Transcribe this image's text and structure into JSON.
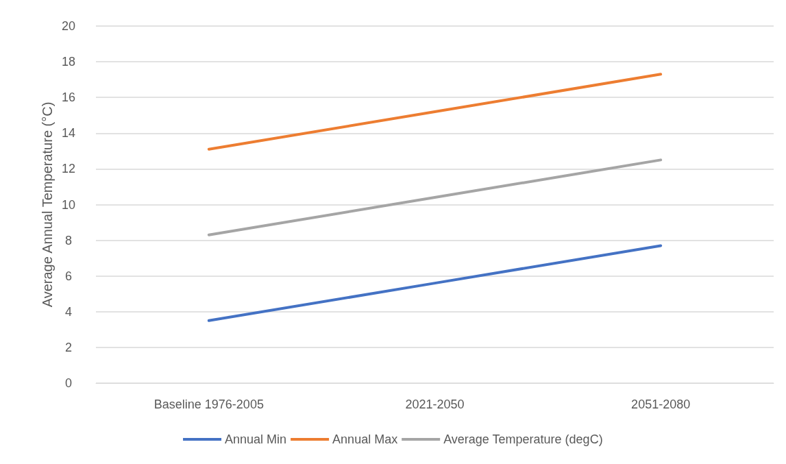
{
  "chart_data": {
    "type": "line",
    "ylabel": "Average Annual Temperature (°C)",
    "categories": [
      "Baseline 1976-2005",
      "2021-2050",
      "2051-2080"
    ],
    "series": [
      {
        "name": "Annual Min",
        "color": "#4472c4",
        "values": [
          3.5,
          5.6,
          7.7
        ]
      },
      {
        "name": "Annual Max",
        "color": "#ed7d31",
        "values": [
          13.1,
          15.2,
          17.3
        ]
      },
      {
        "name": "Average Temperature (degC)",
        "color": "#a5a5a5",
        "values": [
          8.3,
          10.4,
          12.5
        ]
      }
    ],
    "ylim": [
      0,
      20
    ],
    "yticks": [
      0,
      2,
      4,
      6,
      8,
      10,
      12,
      14,
      16,
      18,
      20
    ],
    "grid": "y",
    "legend": "bottom",
    "marker": "none",
    "line_style": "solid"
  }
}
